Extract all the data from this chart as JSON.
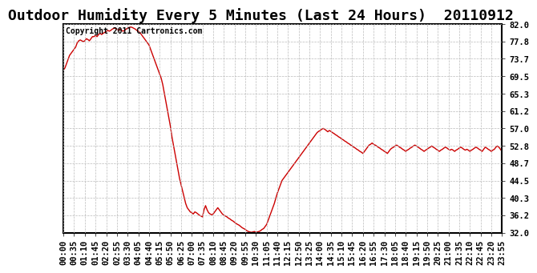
{
  "title": "Outdoor Humidity Every 5 Minutes (Last 24 Hours)  20110912",
  "copyright": "Copyright 2011 Cartronics.com",
  "line_color": "#cc0000",
  "bg_color": "#ffffff",
  "grid_color": "#bbbbbb",
  "ylim": [
    32.0,
    82.0
  ],
  "yticks": [
    32.0,
    36.2,
    40.3,
    44.5,
    48.7,
    52.8,
    57.0,
    61.2,
    65.3,
    69.5,
    73.7,
    77.8,
    82.0
  ],
  "title_fontsize": 13,
  "copyright_fontsize": 7,
  "tick_fontsize": 7.5,
  "humidity_data": [
    71.0,
    71.5,
    72.5,
    73.5,
    74.5,
    75.0,
    75.5,
    76.0,
    76.5,
    77.5,
    78.0,
    78.2,
    78.0,
    77.8,
    78.0,
    78.5,
    78.3,
    78.0,
    78.5,
    79.0,
    79.0,
    79.3,
    79.0,
    79.5,
    79.8,
    79.5,
    79.8,
    80.0,
    80.2,
    80.5,
    80.3,
    80.5,
    80.8,
    81.0,
    81.0,
    80.8,
    80.5,
    80.8,
    80.5,
    80.3,
    80.5,
    80.8,
    81.0,
    81.2,
    81.3,
    81.2,
    81.0,
    80.8,
    80.5,
    80.3,
    80.0,
    79.5,
    79.0,
    78.5,
    78.0,
    77.5,
    77.0,
    76.0,
    75.0,
    74.0,
    73.0,
    72.0,
    71.0,
    70.0,
    69.0,
    67.5,
    65.5,
    63.5,
    61.5,
    59.5,
    57.5,
    55.0,
    53.0,
    51.0,
    49.0,
    47.0,
    45.0,
    43.5,
    42.0,
    40.5,
    39.0,
    38.0,
    37.5,
    37.0,
    36.8,
    36.5,
    37.0,
    36.8,
    36.5,
    36.2,
    36.0,
    35.8,
    37.5,
    38.5,
    37.5,
    36.8,
    36.5,
    36.3,
    36.5,
    37.0,
    37.5,
    38.0,
    37.5,
    37.0,
    36.5,
    36.2,
    36.0,
    35.8,
    35.5,
    35.3,
    35.0,
    34.8,
    34.5,
    34.2,
    34.0,
    33.8,
    33.5,
    33.2,
    33.0,
    32.8,
    32.5,
    32.3,
    32.2,
    32.1,
    32.2,
    32.3,
    32.1,
    32.2,
    32.3,
    32.5,
    32.8,
    33.0,
    33.5,
    34.0,
    35.0,
    36.0,
    37.0,
    38.0,
    39.0,
    40.3,
    41.5,
    42.5,
    43.5,
    44.5,
    45.0,
    45.5,
    46.0,
    46.5,
    47.0,
    47.5,
    48.0,
    48.5,
    49.0,
    49.5,
    50.0,
    50.5,
    51.0,
    51.5,
    52.0,
    52.5,
    53.0,
    53.5,
    54.0,
    54.5,
    55.0,
    55.5,
    56.0,
    56.3,
    56.5,
    56.8,
    57.0,
    56.8,
    56.5,
    56.2,
    56.5,
    56.3,
    56.0,
    55.8,
    55.5,
    55.3,
    55.0,
    54.8,
    54.5,
    54.3,
    54.0,
    53.8,
    53.5,
    53.3,
    53.0,
    52.8,
    52.5,
    52.3,
    52.0,
    51.8,
    51.5,
    51.3,
    51.0,
    51.5,
    52.0,
    52.5,
    53.0,
    53.2,
    53.5,
    53.2,
    53.0,
    52.8,
    52.5,
    52.3,
    52.0,
    51.8,
    51.5,
    51.3,
    51.0,
    51.5,
    52.0,
    52.3,
    52.5,
    52.8,
    53.0,
    52.8,
    52.5,
    52.3,
    52.0,
    51.8,
    51.5,
    51.8,
    52.0,
    52.3,
    52.5,
    52.8,
    53.0,
    52.8,
    52.5,
    52.3,
    52.0,
    51.8,
    51.5,
    51.8,
    52.0,
    52.3,
    52.5,
    52.8,
    52.5,
    52.3,
    52.0,
    51.8,
    51.5,
    51.8,
    52.0,
    52.3,
    52.5,
    52.3,
    52.0,
    51.8,
    52.0,
    51.8,
    51.5,
    51.8,
    52.0,
    52.3,
    52.5,
    52.3,
    52.0,
    51.8,
    52.0,
    51.8,
    51.5,
    51.8,
    52.0,
    52.3,
    52.5,
    52.3,
    52.0,
    51.8,
    51.5,
    52.0,
    52.5,
    52.3,
    52.0,
    51.8,
    51.5,
    51.8,
    52.0,
    52.5,
    52.8,
    52.5,
    52.0,
    51.5
  ]
}
